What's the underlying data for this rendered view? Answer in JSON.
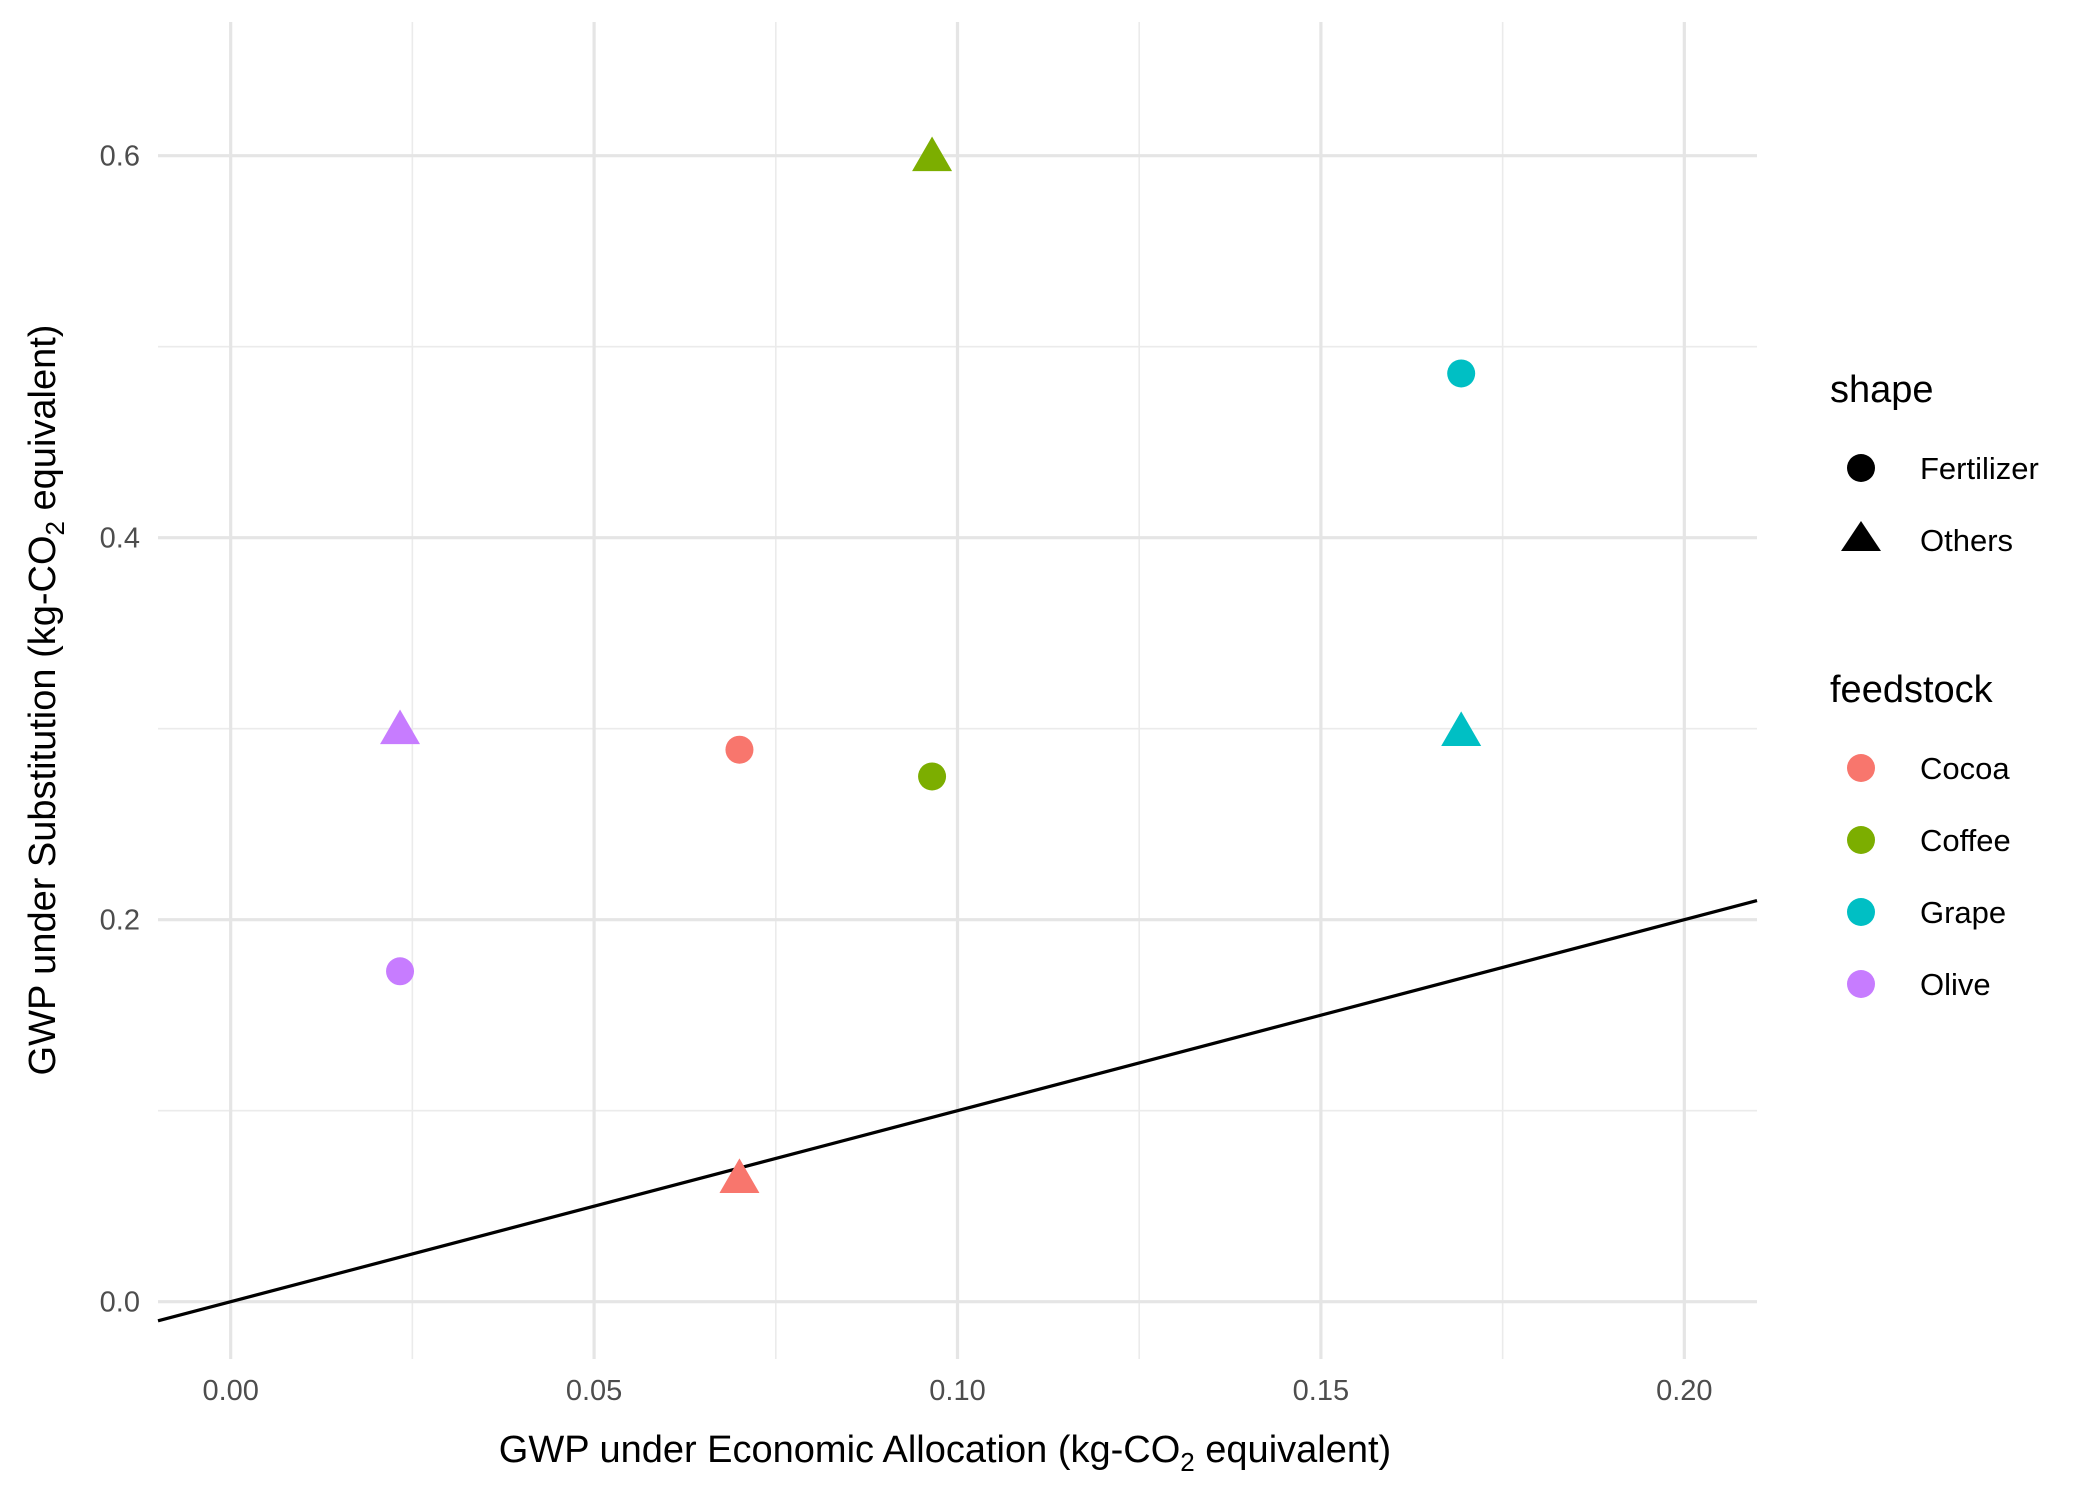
{
  "chart_data": {
    "type": "scatter",
    "xlabel": {
      "prefix": "GWP under Economic Allocation (kg-CO",
      "sub": "2",
      "suffix": " equivalent)"
    },
    "ylabel": {
      "prefix": "GWP under Substitution (kg-CO",
      "sub": "2",
      "suffix": " equivalent)"
    },
    "xlim": [
      -0.01,
      0.21
    ],
    "ylim": [
      -0.03,
      0.67
    ],
    "x_ticks": [
      0.0,
      0.05,
      0.1,
      0.15,
      0.2
    ],
    "x_tick_labels": [
      "0.00",
      "0.05",
      "0.10",
      "0.15",
      "0.20"
    ],
    "x_minor_ticks": [
      0.025,
      0.075,
      0.125,
      0.175
    ],
    "y_ticks": [
      0.0,
      0.2,
      0.4,
      0.6
    ],
    "y_tick_labels": [
      "0.0",
      "0.2",
      "0.4",
      "0.6"
    ],
    "y_minor_ticks": [
      0.1,
      0.3,
      0.5
    ],
    "grid": true,
    "reference_line": {
      "slope": 1,
      "intercept": 0,
      "color": "#000000"
    },
    "legend_position": "right",
    "legends": {
      "shape": {
        "title": "shape",
        "entries": [
          {
            "label": "Fertilizer",
            "shape": "circle"
          },
          {
            "label": "Others",
            "shape": "triangle"
          }
        ]
      },
      "feedstock": {
        "title": "feedstock",
        "entries": [
          {
            "label": "Cocoa",
            "color": "#F8766D"
          },
          {
            "label": "Coffee",
            "color": "#7CAE00"
          },
          {
            "label": "Grape",
            "color": "#00BFC4"
          },
          {
            "label": "Olive",
            "color": "#C77CFF"
          }
        ]
      }
    },
    "points": [
      {
        "feedstock": "Cocoa",
        "shape": "Fertilizer",
        "x": 0.07,
        "y": 0.289
      },
      {
        "feedstock": "Cocoa",
        "shape": "Others",
        "x": 0.07,
        "y": 0.063
      },
      {
        "feedstock": "Coffee",
        "shape": "Fertilizer",
        "x": 0.0965,
        "y": 0.275
      },
      {
        "feedstock": "Coffee",
        "shape": "Others",
        "x": 0.0965,
        "y": 0.598
      },
      {
        "feedstock": "Grape",
        "shape": "Fertilizer",
        "x": 0.1693,
        "y": 0.486
      },
      {
        "feedstock": "Grape",
        "shape": "Others",
        "x": 0.1693,
        "y": 0.297
      },
      {
        "feedstock": "Olive",
        "shape": "Fertilizer",
        "x": 0.0233,
        "y": 0.173
      },
      {
        "feedstock": "Olive",
        "shape": "Others",
        "x": 0.0233,
        "y": 0.298
      }
    ]
  }
}
